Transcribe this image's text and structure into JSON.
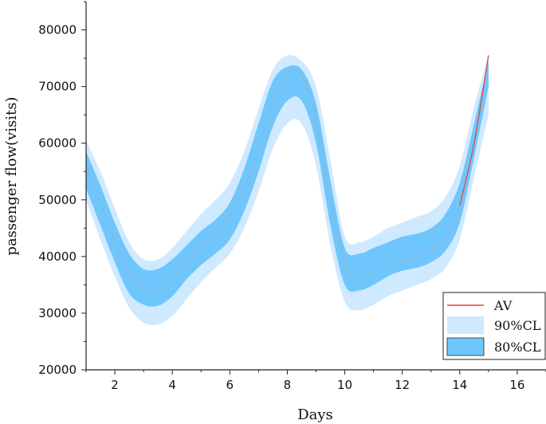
{
  "chart_data": {
    "type": "area",
    "xlabel": "Days",
    "ylabel": "passenger flow(visits)",
    "xlim": [
      1,
      17
    ],
    "ylim": [
      20000,
      85000
    ],
    "xticks": [
      2,
      4,
      6,
      8,
      10,
      12,
      14,
      16
    ],
    "yticks": [
      20000,
      30000,
      40000,
      50000,
      60000,
      70000,
      80000
    ],
    "grid": false,
    "legend_position": "bottom-right",
    "x": [
      1,
      1.5,
      2,
      2.5,
      3,
      3.5,
      4,
      4.5,
      5,
      5.5,
      6,
      6.5,
      7,
      7.5,
      8,
      8.5,
      9,
      9.5,
      10,
      10.5,
      11,
      11.5,
      12,
      12.5,
      13,
      13.5,
      14,
      14.5,
      15
    ],
    "series": [
      {
        "name": "AV",
        "kind": "line",
        "color": "#e8413c",
        "values": [
          56000,
          49500,
          42500,
          37000,
          34200,
          34000,
          35800,
          38800,
          42000,
          44500,
          47000,
          52000,
          59000,
          67000,
          72500,
          72000,
          64000,
          50000,
          39000,
          36000,
          37000,
          38300,
          39300,
          40000,
          41000,
          43000,
          49000,
          60000,
          75500
        ]
      },
      {
        "name": "90%CL",
        "kind": "band",
        "color": "#cfe9ff",
        "lower": [
          50000,
          43000,
          36500,
          31000,
          28300,
          28000,
          29500,
          32500,
          35500,
          38000,
          40500,
          45000,
          51500,
          59000,
          63500,
          63500,
          56000,
          42000,
          32000,
          30500,
          31500,
          33000,
          34000,
          35000,
          36000,
          38000,
          43000,
          54000,
          65000
        ],
        "upper": [
          60500,
          55000,
          48500,
          42500,
          39500,
          39500,
          41500,
          44500,
          47500,
          50000,
          53000,
          58500,
          66000,
          73000,
          75500,
          74500,
          70000,
          57000,
          43500,
          42500,
          43500,
          45000,
          46000,
          47000,
          48000,
          50500,
          56000,
          66500,
          75500
        ]
      },
      {
        "name": "80%CL",
        "kind": "band",
        "color": "#6ec6fc",
        "lower": [
          52000,
          45500,
          39000,
          33500,
          31500,
          31300,
          33000,
          36000,
          38500,
          40500,
          43000,
          48000,
          55000,
          63000,
          67500,
          67500,
          60000,
          45500,
          35000,
          34000,
          35000,
          36500,
          37500,
          38000,
          39000,
          41000,
          46000,
          57500,
          70000
        ],
        "upper": [
          58500,
          52500,
          46000,
          40500,
          37800,
          37800,
          39500,
          42000,
          44500,
          46500,
          49500,
          55500,
          63500,
          71000,
          73500,
          73000,
          67000,
          53500,
          41500,
          40500,
          41500,
          42500,
          43500,
          44000,
          45000,
          47500,
          53000,
          63500,
          74500
        ]
      }
    ]
  }
}
